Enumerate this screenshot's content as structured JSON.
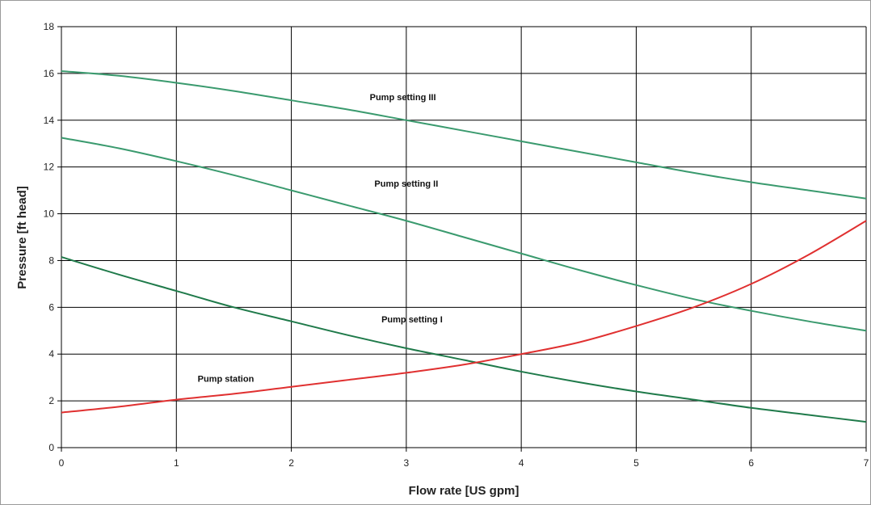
{
  "chart_data": {
    "type": "line",
    "xlabel": "Flow rate [US gpm]",
    "ylabel": "Pressure [ft head]",
    "xlim": [
      0,
      7
    ],
    "ylim": [
      0,
      18
    ],
    "xticks": [
      "0",
      "1",
      "2",
      "3",
      "4",
      "5",
      "6",
      "7"
    ],
    "yticks": [
      "0",
      "2",
      "4",
      "6",
      "8",
      "10",
      "12",
      "14",
      "16",
      "18"
    ],
    "grid": true,
    "legend": "none",
    "series": [
      {
        "name": "Pump setting III",
        "color": "#3a9a6e",
        "x": [
          0,
          0.5,
          1,
          1.5,
          2,
          2.5,
          3,
          3.5,
          4,
          4.5,
          5,
          5.5,
          6,
          6.5,
          7
        ],
        "y": [
          16.1,
          15.9,
          15.6,
          15.25,
          14.85,
          14.45,
          14.0,
          13.55,
          13.1,
          12.65,
          12.2,
          11.75,
          11.35,
          11.0,
          10.65
        ]
      },
      {
        "name": "Pump setting II",
        "color": "#3a9a6e",
        "x": [
          0,
          0.5,
          1,
          1.5,
          2,
          2.5,
          3,
          3.5,
          4,
          4.5,
          5,
          5.5,
          6,
          6.5,
          7
        ],
        "y": [
          13.25,
          12.8,
          12.25,
          11.65,
          11.0,
          10.35,
          9.7,
          9.0,
          8.3,
          7.6,
          6.95,
          6.35,
          5.85,
          5.4,
          5.0
        ]
      },
      {
        "name": "Pump setting I",
        "color": "#1f7a4a",
        "x": [
          0,
          0.5,
          1,
          1.5,
          2,
          2.5,
          3,
          3.5,
          4,
          4.5,
          5,
          5.5,
          6,
          6.5,
          7
        ],
        "y": [
          8.15,
          7.4,
          6.7,
          6.0,
          5.4,
          4.8,
          4.25,
          3.75,
          3.25,
          2.8,
          2.4,
          2.05,
          1.7,
          1.4,
          1.1
        ]
      },
      {
        "name": "Pump station",
        "color": "#e03030",
        "x": [
          0,
          0.5,
          1,
          1.5,
          2,
          2.5,
          3,
          3.5,
          4,
          4.5,
          5,
          5.5,
          6,
          6.5,
          7
        ],
        "y": [
          1.5,
          1.75,
          2.05,
          2.3,
          2.6,
          2.9,
          3.2,
          3.55,
          4.0,
          4.5,
          5.2,
          6.0,
          7.0,
          8.25,
          9.7
        ]
      }
    ],
    "annotations": [
      {
        "text": "Pump setting III",
        "x": 2.97,
        "y": 15.0
      },
      {
        "text": "Pump setting II",
        "x": 3.0,
        "y": 11.3
      },
      {
        "text": "Pump setting I",
        "x": 3.05,
        "y": 5.5
      },
      {
        "text": "Pump station",
        "x": 1.43,
        "y": 2.95
      }
    ]
  }
}
